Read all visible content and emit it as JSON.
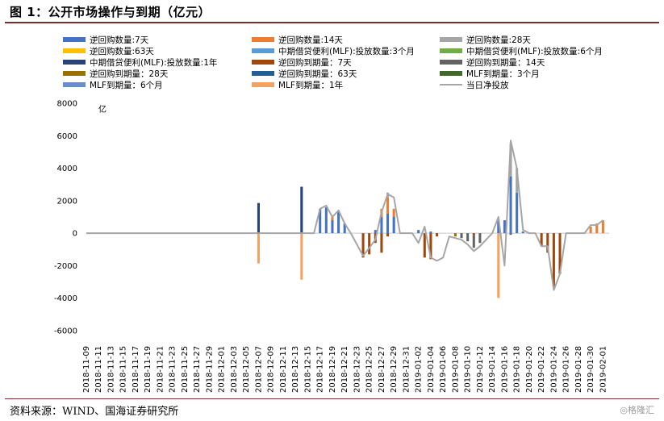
{
  "figure": {
    "title": "图 1：公开市场操作与到期（亿元）",
    "source": "资料来源：WIND、国海证券研究所",
    "watermark": "◎格隆汇"
  },
  "chart_data": {
    "type": "bar",
    "unit_label": "亿",
    "ylim": [
      -6000,
      8000
    ],
    "yticks": [
      -6000,
      -4000,
      -2000,
      0,
      2000,
      4000,
      6000,
      8000
    ],
    "grid": false,
    "legend_position": "top",
    "x_start": "2018-11-09",
    "x_end": "2019-02-02",
    "x_tick_labels": [
      "2018-11-09",
      "2018-11-11",
      "2018-11-13",
      "2018-11-15",
      "2018-11-17",
      "2018-11-19",
      "2018-11-21",
      "2018-11-23",
      "2018-11-25",
      "2018-11-27",
      "2018-11-29",
      "2018-12-01",
      "2018-12-03",
      "2018-12-05",
      "2018-12-07",
      "2018-12-09",
      "2018-12-11",
      "2018-12-13",
      "2018-12-15",
      "2018-12-17",
      "2018-12-19",
      "2018-12-21",
      "2018-12-23",
      "2018-12-25",
      "2018-12-27",
      "2018-12-29",
      "2018-12-31",
      "2019-01-02",
      "2019-01-04",
      "2019-01-06",
      "2019-01-08",
      "2019-01-10",
      "2019-01-12",
      "2019-01-14",
      "2019-01-16",
      "2019-01-18",
      "2019-01-20",
      "2019-01-22",
      "2019-01-24",
      "2019-01-26",
      "2019-01-28",
      "2019-01-30",
      "2019-02-01"
    ],
    "series": [
      {
        "name": "逆回购数量:7天",
        "type": "bar",
        "color": "#4472c4",
        "points": [
          [
            "2018-12-17",
            1500
          ],
          [
            "2018-12-18",
            1600
          ],
          [
            "2018-12-19",
            800
          ],
          [
            "2018-12-20",
            1400
          ],
          [
            "2018-12-21",
            600
          ],
          [
            "2018-12-26",
            200
          ],
          [
            "2018-12-27",
            1000
          ],
          [
            "2018-12-28",
            1200
          ],
          [
            "2018-12-29",
            1000
          ],
          [
            "2019-01-02",
            200
          ],
          [
            "2019-01-04",
            100
          ],
          [
            "2019-01-15",
            800
          ],
          [
            "2019-01-16",
            800
          ],
          [
            "2019-01-17",
            3500
          ],
          [
            "2019-01-18",
            2500
          ],
          [
            "2019-01-19",
            100
          ]
        ]
      },
      {
        "name": "逆回购数量:14天",
        "type": "bar",
        "color": "#ed7d31",
        "points": [
          [
            "2018-12-19",
            200
          ],
          [
            "2018-12-27",
            500
          ],
          [
            "2018-12-28",
            1000
          ],
          [
            "2018-12-29",
            500
          ],
          [
            "2019-01-30",
            400
          ],
          [
            "2019-01-31",
            600
          ],
          [
            "2019-02-01",
            800
          ]
        ]
      },
      {
        "name": "逆回购数量:28天",
        "type": "bar",
        "color": "#a5a5a5",
        "points": [
          [
            "2018-12-28",
            300
          ],
          [
            "2019-01-17",
            2000
          ],
          [
            "2019-01-18",
            1500
          ]
        ]
      },
      {
        "name": "逆回购数量:63天",
        "type": "bar",
        "color": "#ffc000",
        "points": []
      },
      {
        "name": "中期借贷便利(MLF):投放数量:3个月",
        "type": "bar",
        "color": "#5b9bd5",
        "points": []
      },
      {
        "name": "中期借贷便利(MLF):投放数量:6个月",
        "type": "bar",
        "color": "#70ad47",
        "points": []
      },
      {
        "name": "中期借贷便利(MLF):投放数量:1年",
        "type": "bar",
        "color": "#264478",
        "points": [
          [
            "2018-12-07",
            1860
          ],
          [
            "2018-12-14",
            2860
          ]
        ]
      },
      {
        "name": "逆回购到期量：7天",
        "type": "bar",
        "color": "#9e480e",
        "points": [
          [
            "2018-12-24",
            -1500
          ],
          [
            "2018-12-25",
            -1300
          ],
          [
            "2018-12-26",
            -600
          ],
          [
            "2018-12-27",
            -1200
          ],
          [
            "2018-12-28",
            -200
          ],
          [
            "2019-01-03",
            -1500
          ],
          [
            "2019-01-04",
            -1600
          ],
          [
            "2019-01-05",
            -200
          ],
          [
            "2019-01-11",
            -100
          ],
          [
            "2019-01-22",
            -800
          ],
          [
            "2019-01-23",
            -1200
          ],
          [
            "2019-01-24",
            -3300
          ],
          [
            "2019-01-25",
            -2500
          ]
        ]
      },
      {
        "name": "逆回购到期量：14天",
        "type": "bar",
        "color": "#636363",
        "points": [
          [
            "2019-01-09",
            -300
          ],
          [
            "2019-01-10",
            -500
          ],
          [
            "2019-01-11",
            -800
          ],
          [
            "2019-01-12",
            -600
          ],
          [
            "2019-01-17",
            -100
          ]
        ]
      },
      {
        "name": "逆回购到期量：28天",
        "type": "bar",
        "color": "#997300",
        "points": [
          [
            "2019-01-08",
            -200
          ]
        ]
      },
      {
        "name": "逆回购到期量：63天",
        "type": "bar",
        "color": "#255e91",
        "points": []
      },
      {
        "name": "MLF到期量：3个月",
        "type": "bar",
        "color": "#43682b",
        "points": []
      },
      {
        "name": "MLF到期量：6个月",
        "type": "bar",
        "color": "#698ed0",
        "points": []
      },
      {
        "name": "MLF到期量：1年",
        "type": "bar",
        "color": "#f4a261",
        "points": [
          [
            "2018-12-07",
            -1860
          ],
          [
            "2018-12-14",
            -2860
          ],
          [
            "2019-01-15",
            -3985
          ]
        ]
      },
      {
        "name": "当日净投放",
        "type": "line",
        "color": "#a6a6a6",
        "points": [
          [
            "2018-11-09",
            0
          ],
          [
            "2018-12-14",
            0
          ],
          [
            "2018-12-15",
            0
          ],
          [
            "2018-12-16",
            0
          ],
          [
            "2018-12-17",
            1500
          ],
          [
            "2018-12-18",
            1700
          ],
          [
            "2018-12-19",
            1000
          ],
          [
            "2018-12-20",
            1400
          ],
          [
            "2018-12-21",
            600
          ],
          [
            "2018-12-22",
            0
          ],
          [
            "2018-12-24",
            -1400
          ],
          [
            "2018-12-25",
            -900
          ],
          [
            "2018-12-26",
            -400
          ],
          [
            "2018-12-27",
            1300
          ],
          [
            "2018-12-28",
            2400
          ],
          [
            "2018-12-29",
            2200
          ],
          [
            "2018-12-30",
            0
          ],
          [
            "2019-01-01",
            0
          ],
          [
            "2019-01-02",
            -600
          ],
          [
            "2019-01-03",
            400
          ],
          [
            "2019-01-04",
            -1500
          ],
          [
            "2019-01-05",
            -1700
          ],
          [
            "2019-01-06",
            -1500
          ],
          [
            "2019-01-07",
            -200
          ],
          [
            "2019-01-08",
            -300
          ],
          [
            "2019-01-09",
            -400
          ],
          [
            "2019-01-10",
            -700
          ],
          [
            "2019-01-11",
            -1100
          ],
          [
            "2019-01-12",
            -800
          ],
          [
            "2019-01-13",
            -400
          ],
          [
            "2019-01-14",
            0
          ],
          [
            "2019-01-15",
            1000
          ],
          [
            "2019-01-16",
            -2000
          ],
          [
            "2019-01-17",
            5700
          ],
          [
            "2019-01-18",
            4000
          ],
          [
            "2019-01-19",
            200
          ],
          [
            "2019-01-20",
            0
          ],
          [
            "2019-01-21",
            0
          ],
          [
            "2019-01-22",
            -800
          ],
          [
            "2019-01-23",
            -800
          ],
          [
            "2019-01-24",
            -3500
          ],
          [
            "2019-01-25",
            -2500
          ],
          [
            "2019-01-26",
            0
          ],
          [
            "2019-01-28",
            0
          ],
          [
            "2019-01-29",
            0
          ],
          [
            "2019-01-30",
            500
          ],
          [
            "2019-01-31",
            500
          ],
          [
            "2019-02-01",
            800
          ]
        ]
      }
    ]
  }
}
